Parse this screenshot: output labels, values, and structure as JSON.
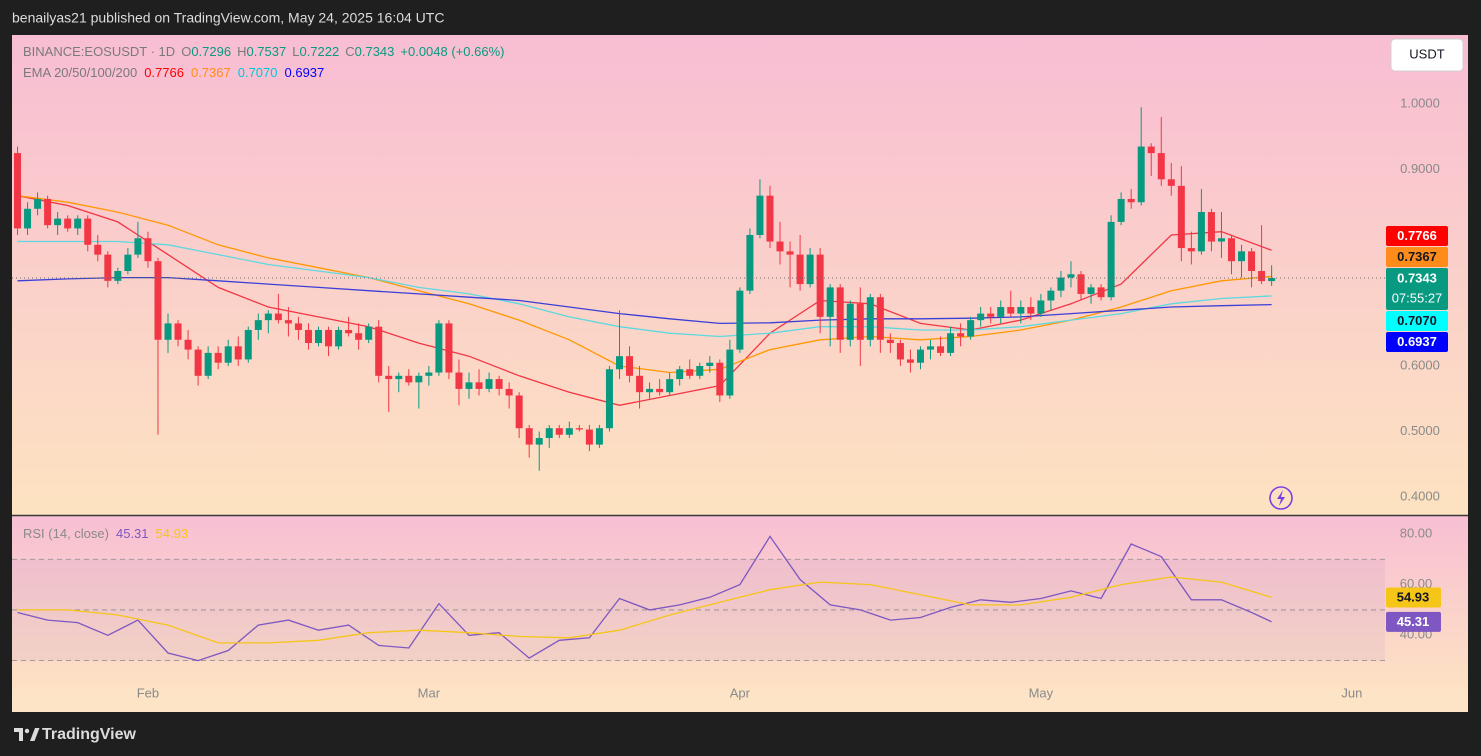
{
  "header": {
    "byline": "benailyas21 published on TradingView.com, May 24, 2025 16:04 UTC"
  },
  "toolbar": {
    "currency": "USDT"
  },
  "footer": {
    "brand": "TradingView"
  },
  "chart_data": [
    {
      "type": "candlestick",
      "symbol": "BINANCE:EOSUSDT · 1D",
      "ohlc_names": [
        "O",
        "H",
        "L",
        "C"
      ],
      "change": "+0.0048 (+0.66%)",
      "countdown": "07:55:27",
      "up_color": "#089981",
      "down_color": "#f23645",
      "candles": [
        [
          0.925,
          0.935,
          0.8,
          0.81
        ],
        [
          0.81,
          0.85,
          0.8,
          0.84
        ],
        [
          0.84,
          0.865,
          0.83,
          0.855
        ],
        [
          0.855,
          0.86,
          0.81,
          0.815
        ],
        [
          0.815,
          0.835,
          0.8,
          0.825
        ],
        [
          0.825,
          0.83,
          0.805,
          0.81
        ],
        [
          0.81,
          0.83,
          0.8,
          0.825
        ],
        [
          0.825,
          0.83,
          0.775,
          0.785
        ],
        [
          0.785,
          0.8,
          0.76,
          0.77
        ],
        [
          0.77,
          0.775,
          0.72,
          0.73
        ],
        [
          0.73,
          0.75,
          0.725,
          0.745
        ],
        [
          0.745,
          0.78,
          0.74,
          0.77
        ],
        [
          0.77,
          0.82,
          0.765,
          0.795
        ],
        [
          0.795,
          0.805,
          0.75,
          0.76
        ],
        [
          0.76,
          0.765,
          0.495,
          0.64
        ],
        [
          0.64,
          0.68,
          0.62,
          0.665
        ],
        [
          0.665,
          0.67,
          0.63,
          0.64
        ],
        [
          0.64,
          0.655,
          0.61,
          0.625
        ],
        [
          0.625,
          0.63,
          0.57,
          0.585
        ],
        [
          0.585,
          0.63,
          0.58,
          0.62
        ],
        [
          0.62,
          0.63,
          0.595,
          0.605
        ],
        [
          0.605,
          0.64,
          0.6,
          0.63
        ],
        [
          0.63,
          0.645,
          0.6,
          0.61
        ],
        [
          0.61,
          0.66,
          0.605,
          0.655
        ],
        [
          0.655,
          0.68,
          0.64,
          0.67
        ],
        [
          0.67,
          0.685,
          0.65,
          0.68
        ],
        [
          0.68,
          0.71,
          0.665,
          0.67
        ],
        [
          0.67,
          0.69,
          0.645,
          0.665
        ],
        [
          0.665,
          0.675,
          0.64,
          0.655
        ],
        [
          0.655,
          0.665,
          0.625,
          0.635
        ],
        [
          0.635,
          0.66,
          0.63,
          0.655
        ],
        [
          0.655,
          0.66,
          0.615,
          0.63
        ],
        [
          0.63,
          0.66,
          0.625,
          0.655
        ],
        [
          0.655,
          0.675,
          0.645,
          0.65
        ],
        [
          0.65,
          0.665,
          0.625,
          0.64
        ],
        [
          0.64,
          0.665,
          0.635,
          0.66
        ],
        [
          0.66,
          0.67,
          0.575,
          0.585
        ],
        [
          0.585,
          0.6,
          0.53,
          0.58
        ],
        [
          0.58,
          0.59,
          0.56,
          0.585
        ],
        [
          0.585,
          0.595,
          0.57,
          0.575
        ],
        [
          0.575,
          0.59,
          0.535,
          0.585
        ],
        [
          0.585,
          0.6,
          0.57,
          0.59
        ],
        [
          0.59,
          0.67,
          0.585,
          0.665
        ],
        [
          0.665,
          0.67,
          0.58,
          0.59
        ],
        [
          0.59,
          0.61,
          0.54,
          0.565
        ],
        [
          0.565,
          0.59,
          0.55,
          0.575
        ],
        [
          0.575,
          0.595,
          0.555,
          0.565
        ],
        [
          0.565,
          0.59,
          0.56,
          0.58
        ],
        [
          0.58,
          0.585,
          0.555,
          0.565
        ],
        [
          0.565,
          0.575,
          0.535,
          0.555
        ],
        [
          0.555,
          0.56,
          0.49,
          0.505
        ],
        [
          0.505,
          0.51,
          0.46,
          0.48
        ],
        [
          0.48,
          0.5,
          0.44,
          0.49
        ],
        [
          0.49,
          0.51,
          0.475,
          0.505
        ],
        [
          0.505,
          0.51,
          0.49,
          0.495
        ],
        [
          0.495,
          0.515,
          0.49,
          0.505
        ],
        [
          0.505,
          0.51,
          0.5,
          0.503
        ],
        [
          0.503,
          0.51,
          0.47,
          0.48
        ],
        [
          0.48,
          0.51,
          0.475,
          0.505
        ],
        [
          0.505,
          0.6,
          0.5,
          0.595
        ],
        [
          0.595,
          0.685,
          0.58,
          0.615
        ],
        [
          0.615,
          0.63,
          0.575,
          0.585
        ],
        [
          0.585,
          0.6,
          0.535,
          0.56
        ],
        [
          0.56,
          0.575,
          0.55,
          0.565
        ],
        [
          0.565,
          0.58,
          0.555,
          0.56
        ],
        [
          0.56,
          0.59,
          0.555,
          0.58
        ],
        [
          0.58,
          0.6,
          0.57,
          0.595
        ],
        [
          0.595,
          0.61,
          0.58,
          0.585
        ],
        [
          0.585,
          0.605,
          0.58,
          0.6
        ],
        [
          0.6,
          0.615,
          0.59,
          0.605
        ],
        [
          0.605,
          0.61,
          0.545,
          0.555
        ],
        [
          0.555,
          0.64,
          0.55,
          0.625
        ],
        [
          0.625,
          0.72,
          0.62,
          0.715
        ],
        [
          0.715,
          0.81,
          0.71,
          0.8
        ],
        [
          0.8,
          0.885,
          0.795,
          0.86
        ],
        [
          0.86,
          0.875,
          0.78,
          0.79
        ],
        [
          0.79,
          0.82,
          0.755,
          0.775
        ],
        [
          0.775,
          0.79,
          0.72,
          0.77
        ],
        [
          0.77,
          0.8,
          0.715,
          0.725
        ],
        [
          0.725,
          0.78,
          0.72,
          0.77
        ],
        [
          0.77,
          0.78,
          0.65,
          0.675
        ],
        [
          0.675,
          0.725,
          0.63,
          0.72
        ],
        [
          0.72,
          0.725,
          0.62,
          0.64
        ],
        [
          0.64,
          0.7,
          0.63,
          0.695
        ],
        [
          0.695,
          0.72,
          0.6,
          0.64
        ],
        [
          0.64,
          0.71,
          0.63,
          0.705
        ],
        [
          0.705,
          0.71,
          0.62,
          0.64
        ],
        [
          0.64,
          0.65,
          0.62,
          0.635
        ],
        [
          0.635,
          0.64,
          0.6,
          0.61
        ],
        [
          0.61,
          0.625,
          0.59,
          0.605
        ],
        [
          0.605,
          0.63,
          0.595,
          0.625
        ],
        [
          0.625,
          0.64,
          0.61,
          0.63
        ],
        [
          0.63,
          0.645,
          0.615,
          0.62
        ],
        [
          0.62,
          0.66,
          0.615,
          0.65
        ],
        [
          0.65,
          0.665,
          0.63,
          0.645
        ],
        [
          0.645,
          0.675,
          0.64,
          0.67
        ],
        [
          0.67,
          0.69,
          0.66,
          0.68
        ],
        [
          0.68,
          0.69,
          0.665,
          0.675
        ],
        [
          0.675,
          0.7,
          0.665,
          0.69
        ],
        [
          0.69,
          0.715,
          0.675,
          0.68
        ],
        [
          0.68,
          0.7,
          0.665,
          0.69
        ],
        [
          0.69,
          0.705,
          0.67,
          0.68
        ],
        [
          0.68,
          0.71,
          0.675,
          0.7
        ],
        [
          0.7,
          0.72,
          0.685,
          0.715
        ],
        [
          0.715,
          0.745,
          0.705,
          0.735
        ],
        [
          0.735,
          0.76,
          0.72,
          0.74
        ],
        [
          0.74,
          0.745,
          0.7,
          0.71
        ],
        [
          0.71,
          0.725,
          0.695,
          0.72
        ],
        [
          0.72,
          0.725,
          0.7,
          0.705
        ],
        [
          0.705,
          0.83,
          0.7,
          0.82
        ],
        [
          0.82,
          0.865,
          0.815,
          0.855
        ],
        [
          0.855,
          0.87,
          0.84,
          0.85
        ],
        [
          0.85,
          0.995,
          0.845,
          0.935
        ],
        [
          0.935,
          0.94,
          0.89,
          0.925
        ],
        [
          0.925,
          0.98,
          0.875,
          0.885
        ],
        [
          0.885,
          0.91,
          0.86,
          0.875
        ],
        [
          0.875,
          0.905,
          0.76,
          0.78
        ],
        [
          0.78,
          0.805,
          0.755,
          0.775
        ],
        [
          0.775,
          0.87,
          0.77,
          0.835
        ],
        [
          0.835,
          0.84,
          0.775,
          0.79
        ],
        [
          0.79,
          0.835,
          0.765,
          0.795
        ],
        [
          0.795,
          0.8,
          0.74,
          0.76
        ],
        [
          0.76,
          0.785,
          0.735,
          0.775
        ],
        [
          0.775,
          0.78,
          0.72,
          0.745
        ],
        [
          0.745,
          0.815,
          0.725,
          0.7296
        ],
        [
          0.7296,
          0.7537,
          0.7222,
          0.7343
        ]
      ],
      "indicator": "EMA 20/50/100/200",
      "x": [
        0,
        5,
        10,
        15,
        20,
        25,
        30,
        35,
        40,
        45,
        50,
        55,
        60,
        65,
        70,
        75,
        80,
        85,
        90,
        95,
        100,
        105,
        110,
        115,
        120,
        125
      ],
      "series": [
        {
          "color": "#f23645",
          "badge_color": "#ff0000",
          "price_label": "0.7766",
          "values": [
            0.86,
            0.845,
            0.82,
            0.77,
            0.72,
            0.69,
            0.675,
            0.66,
            0.635,
            0.615,
            0.585,
            0.56,
            0.54,
            0.555,
            0.57,
            0.65,
            0.7,
            0.695,
            0.665,
            0.655,
            0.67,
            0.695,
            0.725,
            0.8,
            0.805,
            0.7766
          ]
        },
        {
          "color": "#ff9800",
          "badge_color": "#ff8c1a",
          "price_label": "0.7367",
          "values": [
            0.86,
            0.85,
            0.835,
            0.815,
            0.785,
            0.765,
            0.75,
            0.735,
            0.715,
            0.695,
            0.67,
            0.64,
            0.6,
            0.59,
            0.595,
            0.625,
            0.64,
            0.645,
            0.64,
            0.645,
            0.655,
            0.67,
            0.69,
            0.715,
            0.73,
            0.7367
          ]
        },
        {
          "color": "#5fd8e0",
          "badge_color": "#00ffff",
          "price_label": "0.7070",
          "values": [
            0.79,
            0.79,
            0.79,
            0.785,
            0.77,
            0.755,
            0.745,
            0.735,
            0.72,
            0.71,
            0.695,
            0.675,
            0.66,
            0.65,
            0.645,
            0.65,
            0.66,
            0.66,
            0.655,
            0.655,
            0.66,
            0.67,
            0.68,
            0.695,
            0.703,
            0.707
          ]
        },
        {
          "color": "#3b3fd8",
          "badge_color": "#0000ff",
          "price_label": "0.6937",
          "values": [
            0.73,
            0.733,
            0.735,
            0.735,
            0.73,
            0.725,
            0.72,
            0.715,
            0.71,
            0.705,
            0.7,
            0.69,
            0.68,
            0.672,
            0.665,
            0.666,
            0.67,
            0.672,
            0.672,
            0.673,
            0.675,
            0.68,
            0.685,
            0.69,
            0.692,
            0.6937
          ]
        }
      ],
      "xlim": [
        -0.55,
        136.3
      ],
      "xticks": [
        {
          "value": 13,
          "label": "Feb"
        },
        {
          "value": 41,
          "label": "Mar"
        },
        {
          "value": 72,
          "label": "Apr"
        },
        {
          "value": 102,
          "label": "May"
        },
        {
          "value": 133,
          "label": "Jun"
        }
      ],
      "ylim": [
        0.3725,
        1.1053
      ],
      "yticks": [
        {
          "value": 1,
          "label": "1.0000"
        },
        {
          "value": 0.9,
          "label": "0.9000"
        },
        {
          "value": 0.8,
          "label": "0.8000"
        },
        {
          "value": 0.7,
          "label": "0.7000"
        },
        {
          "value": 0.6,
          "label": "0.6000"
        },
        {
          "value": 0.5,
          "label": "0.5000"
        },
        {
          "value": 0.4,
          "label": "0.4000"
        }
      ],
      "grid": false,
      "last_price_line": true
    },
    {
      "type": "line",
      "title": "RSI (14, close)",
      "series": [
        {
          "color": "#7e57c2",
          "x": [
            0,
            3,
            6,
            9,
            12,
            15,
            18,
            21,
            24,
            27,
            30,
            33,
            36,
            39,
            42,
            45,
            48,
            51,
            54,
            57,
            60,
            63,
            66,
            69,
            72,
            75,
            78,
            81,
            84,
            87,
            90,
            93,
            96,
            99,
            102,
            105,
            108,
            111,
            114,
            117,
            120,
            123,
            125
          ],
          "values": [
            49,
            46,
            45,
            40,
            46,
            33,
            30,
            34,
            44,
            46,
            42,
            44,
            36,
            35,
            52.5,
            40,
            41,
            31,
            38,
            39,
            54.5,
            50,
            52,
            55,
            60,
            79,
            62,
            52,
            50,
            46,
            47,
            51,
            54,
            53,
            54.5,
            57.5,
            54.5,
            76,
            71,
            54,
            54,
            49,
            45.31
          ]
        },
        {
          "color": "#f5c518",
          "x": [
            0,
            5,
            10,
            15,
            20,
            25,
            30,
            35,
            40,
            45,
            50,
            55,
            60,
            65,
            70,
            75,
            80,
            85,
            90,
            95,
            100,
            105,
            110,
            115,
            120,
            125
          ],
          "values": [
            50,
            50,
            48,
            44,
            37,
            37,
            38,
            41,
            42,
            41,
            39.5,
            39,
            42,
            48,
            53,
            58,
            61,
            60,
            56,
            52,
            52,
            55,
            60,
            63,
            61,
            54.93
          ]
        }
      ],
      "xlim": [
        -0.55,
        136.3
      ],
      "ylim": [
        19.2,
        87.06
      ],
      "yticks": [
        {
          "value": 80,
          "label": "80.00"
        },
        {
          "value": 60,
          "label": "60.00"
        },
        {
          "value": 40,
          "label": "40.00"
        }
      ],
      "bands": [
        70,
        50,
        30
      ],
      "grid": false
    }
  ]
}
